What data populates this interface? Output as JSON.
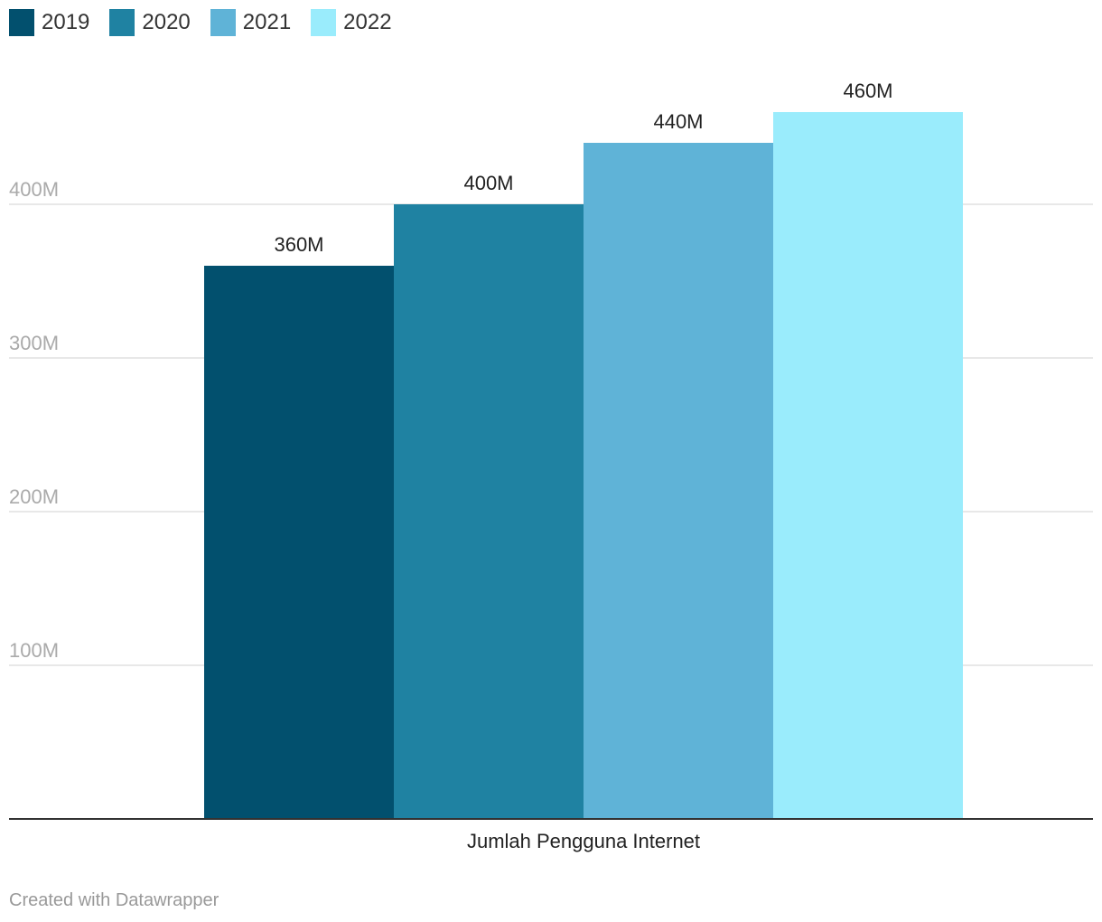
{
  "legend": [
    {
      "label": "2019",
      "color": "#02506e"
    },
    {
      "label": "2020",
      "color": "#1f82a2"
    },
    {
      "label": "2021",
      "color": "#5fb3d7"
    },
    {
      "label": "2022",
      "color": "#9aecfc"
    }
  ],
  "chart_data": {
    "type": "bar",
    "categories": [
      "Jumlah Pengguna Internet"
    ],
    "series": [
      {
        "name": "2019",
        "values": [
          360
        ],
        "label": "360M",
        "color": "#02506e"
      },
      {
        "name": "2020",
        "values": [
          400
        ],
        "label": "400M",
        "color": "#1f82a2"
      },
      {
        "name": "2021",
        "values": [
          440
        ],
        "label": "440M",
        "color": "#5fb3d7"
      },
      {
        "name": "2022",
        "values": [
          460
        ],
        "label": "460M",
        "color": "#9aecfc"
      }
    ],
    "unit": "M",
    "ylim": [
      0,
      460
    ],
    "yticks": [
      100,
      200,
      300,
      400
    ],
    "ytick_labels": [
      "100M",
      "200M",
      "300M",
      "400M"
    ],
    "grid": true,
    "legend_position": "top-left"
  },
  "footer": "Created with Datawrapper"
}
